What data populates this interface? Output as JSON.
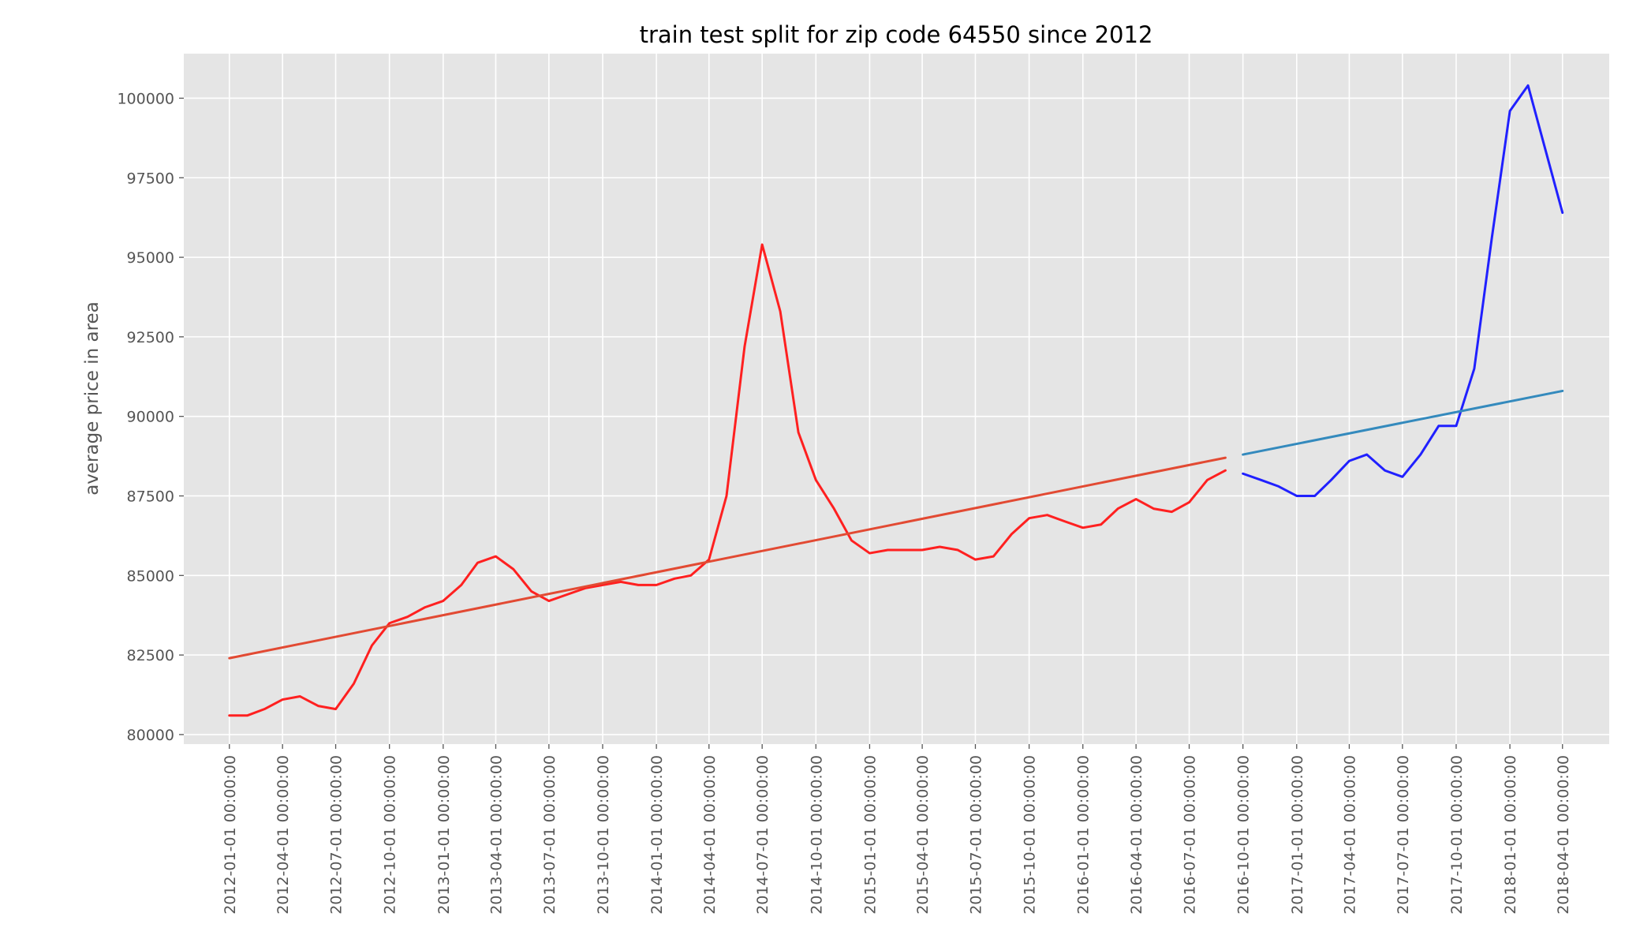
{
  "chart_data": {
    "type": "line",
    "title": "train test split for zip code 64550 since 2012",
    "xlabel": "",
    "ylabel": "average price in area",
    "ylim": [
      79700,
      101400
    ],
    "xlim": [
      "2011-10-15",
      "2018-06-20"
    ],
    "grid": true,
    "background": "#e5e5e5",
    "yticks": [
      80000,
      82500,
      85000,
      87500,
      90000,
      92500,
      95000,
      97500,
      100000
    ],
    "xticks": [
      "2012-01-01 00:00:00",
      "2012-04-01 00:00:00",
      "2012-07-01 00:00:00",
      "2012-10-01 00:00:00",
      "2013-01-01 00:00:00",
      "2013-04-01 00:00:00",
      "2013-07-01 00:00:00",
      "2013-10-01 00:00:00",
      "2014-01-01 00:00:00",
      "2014-04-01 00:00:00",
      "2014-07-01 00:00:00",
      "2014-10-01 00:00:00",
      "2015-01-01 00:00:00",
      "2015-04-01 00:00:00",
      "2015-07-01 00:00:00",
      "2015-10-01 00:00:00",
      "2016-01-01 00:00:00",
      "2016-04-01 00:00:00",
      "2016-07-01 00:00:00",
      "2016-10-01 00:00:00",
      "2017-01-01 00:00:00",
      "2017-04-01 00:00:00",
      "2017-07-01 00:00:00",
      "2017-10-01 00:00:00",
      "2018-01-01 00:00:00",
      "2018-04-01 00:00:00"
    ],
    "series": [
      {
        "color": "#ff2020",
        "x": [
          "2012-01-01",
          "2012-02-01",
          "2012-03-01",
          "2012-04-01",
          "2012-05-01",
          "2012-06-01",
          "2012-07-01",
          "2012-08-01",
          "2012-09-01",
          "2012-10-01",
          "2012-11-01",
          "2012-12-01",
          "2013-01-01",
          "2013-02-01",
          "2013-03-01",
          "2013-04-01",
          "2013-05-01",
          "2013-06-01",
          "2013-07-01",
          "2013-08-01",
          "2013-09-01",
          "2013-10-01",
          "2013-11-01",
          "2013-12-01",
          "2014-01-01",
          "2014-02-01",
          "2014-03-01",
          "2014-04-01",
          "2014-05-01",
          "2014-06-01",
          "2014-07-01",
          "2014-08-01",
          "2014-09-01",
          "2014-10-01",
          "2014-11-01",
          "2014-12-01",
          "2015-01-01",
          "2015-02-01",
          "2015-03-01",
          "2015-04-01",
          "2015-05-01",
          "2015-06-01",
          "2015-07-01",
          "2015-08-01",
          "2015-09-01",
          "2015-10-01",
          "2015-11-01",
          "2015-12-01",
          "2016-01-01",
          "2016-02-01",
          "2016-03-01",
          "2016-04-01",
          "2016-05-01",
          "2016-06-01",
          "2016-07-01",
          "2016-08-01",
          "2016-09-01"
        ],
        "values": [
          80600,
          80600,
          80800,
          81100,
          81200,
          80900,
          80800,
          81600,
          82800,
          83500,
          83700,
          84000,
          84200,
          84700,
          85400,
          85600,
          85200,
          84500,
          84200,
          84400,
          84600,
          84700,
          84800,
          84700,
          84700,
          84900,
          85000,
          85500,
          87500,
          92200,
          95400,
          93300,
          89500,
          88000,
          87100,
          86100,
          85700,
          85800,
          85800,
          85800,
          85900,
          85800,
          85500,
          85600,
          86300,
          86800,
          86900,
          86700,
          86500,
          86600,
          87100,
          87400,
          87100,
          87000,
          87300,
          88000,
          88300
        ]
      },
      {
        "color": "#e24a33",
        "x": [
          "2012-01-01",
          "2016-09-01"
        ],
        "values": [
          82400,
          88700
        ]
      },
      {
        "color": "#2020ff",
        "x": [
          "2016-10-01",
          "2016-11-01",
          "2016-12-01",
          "2017-01-01",
          "2017-02-01",
          "2017-03-01",
          "2017-04-01",
          "2017-05-01",
          "2017-06-01",
          "2017-07-01",
          "2017-08-01",
          "2017-09-01",
          "2017-10-01",
          "2017-11-01",
          "2017-12-01",
          "2018-01-01",
          "2018-02-01",
          "2018-03-01",
          "2018-04-01"
        ],
        "values": [
          88200,
          88000,
          87800,
          87500,
          87500,
          88000,
          88600,
          88800,
          88300,
          88100,
          88800,
          89700,
          89700,
          91500,
          95600,
          99600,
          100400,
          98500,
          96400
        ]
      },
      {
        "color": "#348abd",
        "x": [
          "2016-10-01",
          "2018-04-01"
        ],
        "values": [
          88800,
          90800
        ]
      }
    ]
  }
}
